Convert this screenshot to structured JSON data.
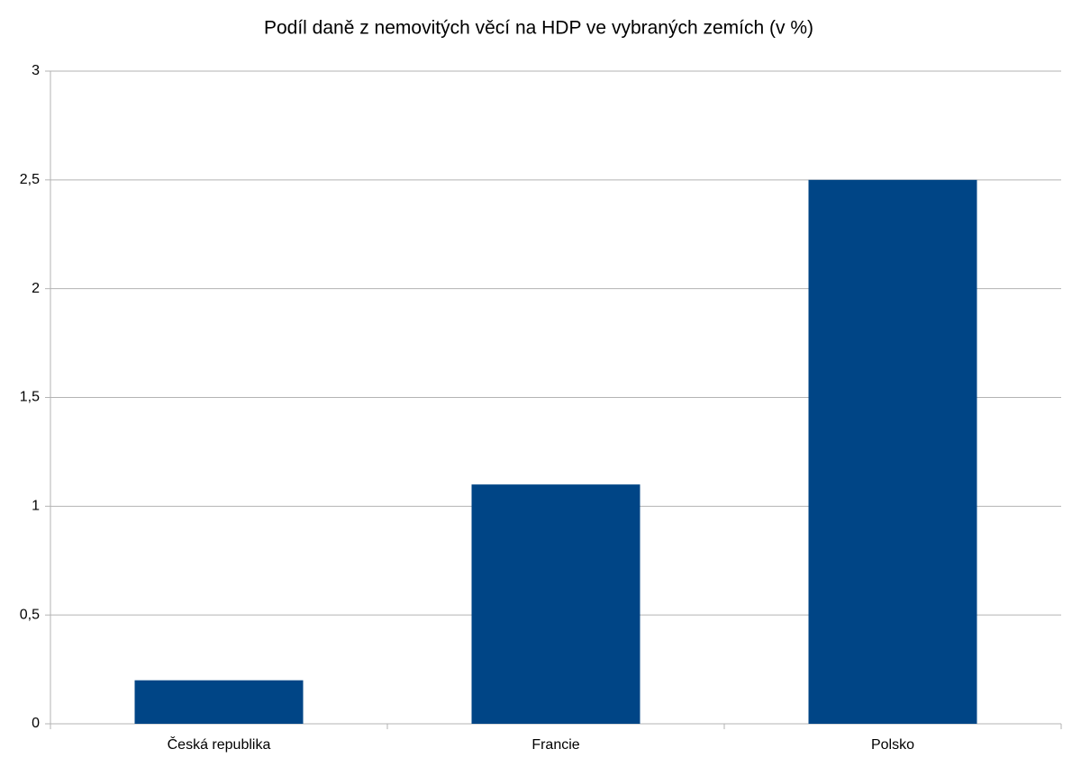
{
  "chart_data": {
    "type": "bar",
    "title": "Podíl daně z nemovitých věcí na HDP ve vybraných zemích (v %)",
    "categories": [
      "Česká republika",
      "Francie",
      "Polsko"
    ],
    "values": [
      0.2,
      1.1,
      2.5
    ],
    "color": "#004586",
    "ylim": [
      0,
      3
    ],
    "yticks": [
      0,
      {
        "value": 0.5,
        "label": "0,5"
      },
      1,
      {
        "value": 1.5,
        "label": "1,5"
      },
      2,
      {
        "value": 2.5,
        "label": "2,5"
      },
      3
    ],
    "grid": true
  }
}
